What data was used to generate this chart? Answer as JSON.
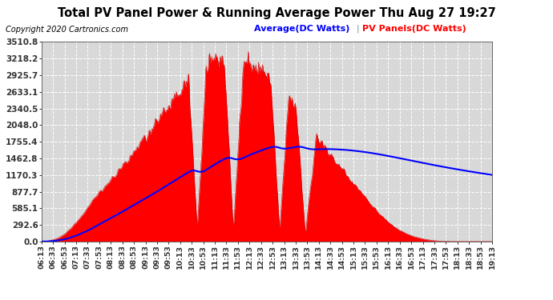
{
  "title": "Total PV Panel Power & Running Average Power Thu Aug 27 19:27",
  "copyright": "Copyright 2020 Cartronics.com",
  "legend_avg": "Average(DC Watts)",
  "legend_pv": "PV Panels(DC Watts)",
  "ylabel_values": [
    0.0,
    292.6,
    585.1,
    877.7,
    1170.3,
    1462.8,
    1755.4,
    2048.0,
    2340.5,
    2633.1,
    2925.7,
    3218.2,
    3510.8
  ],
  "ymax": 3510.8,
  "ymin": 0.0,
  "bg_color": "#ffffff",
  "plot_bg_color": "#d8d8d8",
  "grid_color": "#ffffff",
  "pv_fill_color": "#ff0000",
  "avg_line_color": "#0000ff",
  "title_color": "#000000",
  "copyright_color": "#000000",
  "tick_label_color": "#000000",
  "x_tick_labels": [
    "06:13",
    "06:33",
    "06:53",
    "07:13",
    "07:33",
    "07:53",
    "08:13",
    "08:33",
    "08:53",
    "09:13",
    "09:33",
    "09:53",
    "10:13",
    "10:33",
    "10:53",
    "11:13",
    "11:33",
    "11:53",
    "12:13",
    "12:33",
    "12:53",
    "13:13",
    "13:33",
    "13:53",
    "14:13",
    "14:33",
    "14:53",
    "15:13",
    "15:33",
    "15:53",
    "16:13",
    "16:33",
    "16:53",
    "17:13",
    "17:33",
    "17:53",
    "18:13",
    "18:33",
    "18:53",
    "19:13"
  ],
  "n_points": 800
}
